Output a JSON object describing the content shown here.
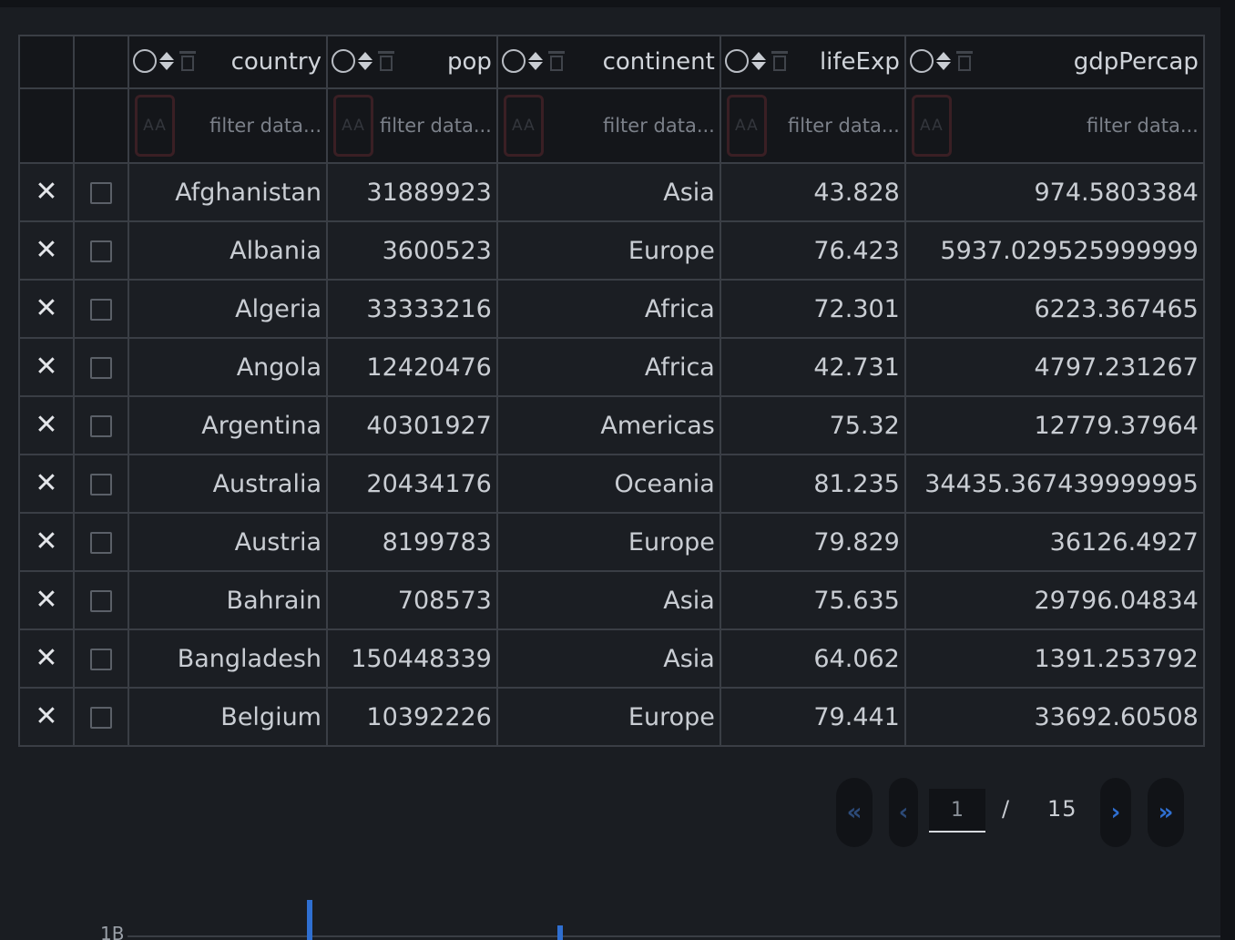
{
  "columns": [
    {
      "key": "country",
      "label": "country",
      "filter_placeholder": "filter data..."
    },
    {
      "key": "pop",
      "label": "pop",
      "filter_placeholder": "filter data..."
    },
    {
      "key": "continent",
      "label": "continent",
      "filter_placeholder": "filter data..."
    },
    {
      "key": "lifeExp",
      "label": "lifeExp",
      "filter_placeholder": "filter data..."
    },
    {
      "key": "gdpPercap",
      "label": "gdpPercap",
      "filter_placeholder": "filter data..."
    }
  ],
  "case_toggle_label": "AA",
  "delete_glyph": "✕",
  "rows": [
    {
      "country": "Afghanistan",
      "pop": "31889923",
      "continent": "Asia",
      "lifeExp": "43.828",
      "gdpPercap": "974.5803384"
    },
    {
      "country": "Albania",
      "pop": "3600523",
      "continent": "Europe",
      "lifeExp": "76.423",
      "gdpPercap": "5937.029525999999"
    },
    {
      "country": "Algeria",
      "pop": "33333216",
      "continent": "Africa",
      "lifeExp": "72.301",
      "gdpPercap": "6223.367465"
    },
    {
      "country": "Angola",
      "pop": "12420476",
      "continent": "Africa",
      "lifeExp": "42.731",
      "gdpPercap": "4797.231267"
    },
    {
      "country": "Argentina",
      "pop": "40301927",
      "continent": "Americas",
      "lifeExp": "75.32",
      "gdpPercap": "12779.37964"
    },
    {
      "country": "Australia",
      "pop": "20434176",
      "continent": "Oceania",
      "lifeExp": "81.235",
      "gdpPercap": "34435.367439999995"
    },
    {
      "country": "Austria",
      "pop": "8199783",
      "continent": "Europe",
      "lifeExp": "79.829",
      "gdpPercap": "36126.4927"
    },
    {
      "country": "Bahrain",
      "pop": "708573",
      "continent": "Asia",
      "lifeExp": "75.635",
      "gdpPercap": "29796.04834"
    },
    {
      "country": "Bangladesh",
      "pop": "150448339",
      "continent": "Asia",
      "lifeExp": "64.062",
      "gdpPercap": "1391.253792"
    },
    {
      "country": "Belgium",
      "pop": "10392226",
      "continent": "Europe",
      "lifeExp": "79.441",
      "gdpPercap": "33692.60508"
    }
  ],
  "pagination": {
    "first_glyph": "«",
    "prev_glyph": "‹",
    "next_glyph": "›",
    "last_glyph": "»",
    "current_page": "1",
    "separator": "/",
    "total_pages": "15"
  },
  "chart_preview": {
    "tick_label": "1B",
    "colors": {
      "bar": "#2f6fd1",
      "axis": "#3a3e45"
    }
  }
}
